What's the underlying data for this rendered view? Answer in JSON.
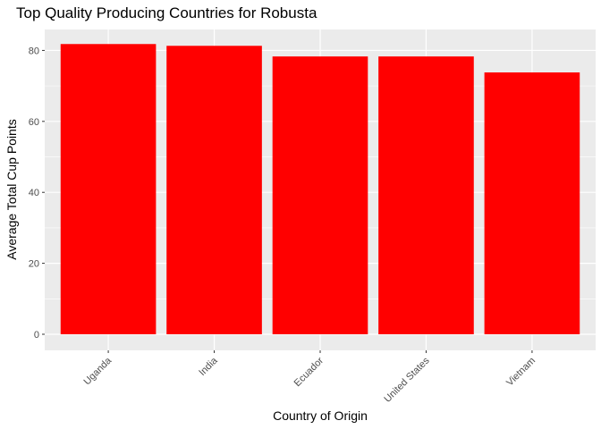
{
  "chart_data": {
    "type": "bar",
    "title": "Top Quality Producing Countries for Robusta",
    "xlabel": "Country of Origin",
    "ylabel": "Average Total Cup Points",
    "categories": [
      "Uganda",
      "India",
      "Ecuador",
      "United States",
      "Vietnam"
    ],
    "values": [
      81.8,
      81.3,
      78.3,
      78.3,
      73.8
    ],
    "ylim": [
      0,
      85.9
    ],
    "yticks": [
      0,
      20,
      40,
      60,
      80
    ],
    "grid": true,
    "legend": "none",
    "bar_color": "#ff0000",
    "panel_color": "#ebebeb",
    "grid_color": "#ffffff"
  }
}
